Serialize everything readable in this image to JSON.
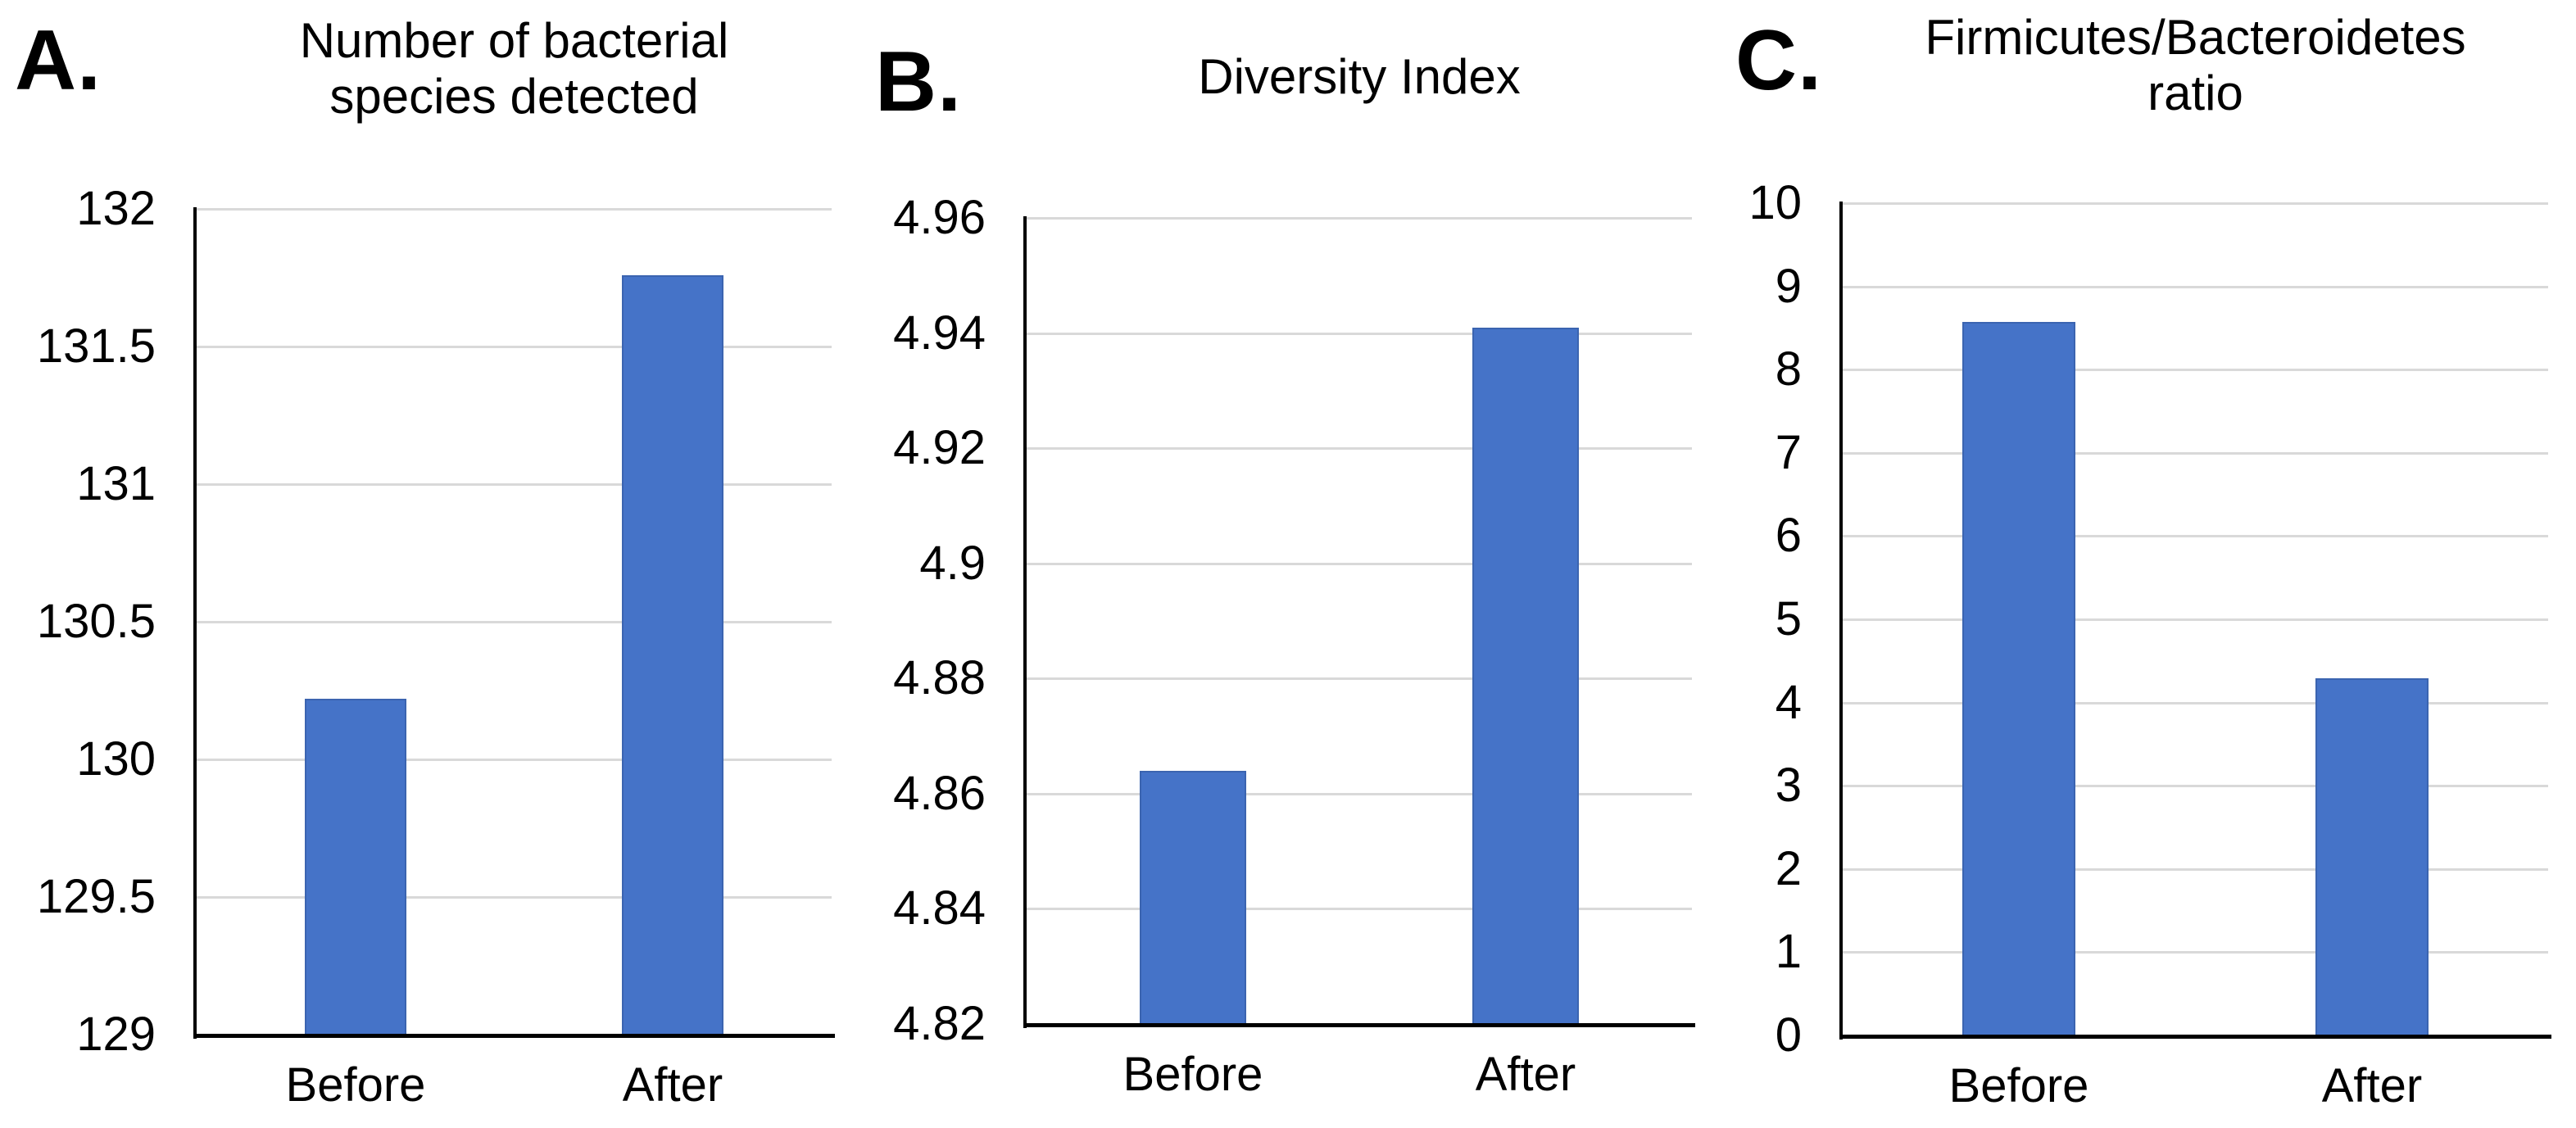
{
  "style": {
    "background": "#ffffff",
    "bar_color": "#4573c8",
    "bar_border_color": "#3b64b0",
    "gridline_color": "#d9d9d9",
    "axis_color": "#000000",
    "text_color": "#000000"
  },
  "chart_data": [
    {
      "type": "bar",
      "panel_label": "A.",
      "title": "Number of bacterial\nspecies detected",
      "categories": [
        "Before",
        "After"
      ],
      "values": [
        130.22,
        131.76
      ],
      "ylim": [
        129,
        132
      ],
      "ytick_step": 0.5,
      "ytick_labels": [
        "129",
        "129.5",
        "130",
        "130.5",
        "131",
        "131.5",
        "132"
      ],
      "grid": true,
      "legend": "none"
    },
    {
      "type": "bar",
      "panel_label": "B.",
      "title": "Diversity Index",
      "categories": [
        "Before",
        "After"
      ],
      "values": [
        4.864,
        4.941
      ],
      "ylim": [
        4.82,
        4.96
      ],
      "ytick_step": 0.02,
      "ytick_labels": [
        "4.82",
        "4.84",
        "4.86",
        "4.88",
        "4.9",
        "4.92",
        "4.94",
        "4.96"
      ],
      "grid": true,
      "legend": "none"
    },
    {
      "type": "bar",
      "panel_label": "C.",
      "title": "Firmicutes/Bacteroidetes\nratio",
      "categories": [
        "Before",
        "After"
      ],
      "values": [
        8.57,
        4.29
      ],
      "ylim": [
        0,
        10
      ],
      "ytick_step": 1,
      "ytick_labels": [
        "0",
        "1",
        "2",
        "3",
        "4",
        "5",
        "6",
        "7",
        "8",
        "9",
        "10"
      ],
      "grid": true,
      "legend": "none"
    }
  ]
}
